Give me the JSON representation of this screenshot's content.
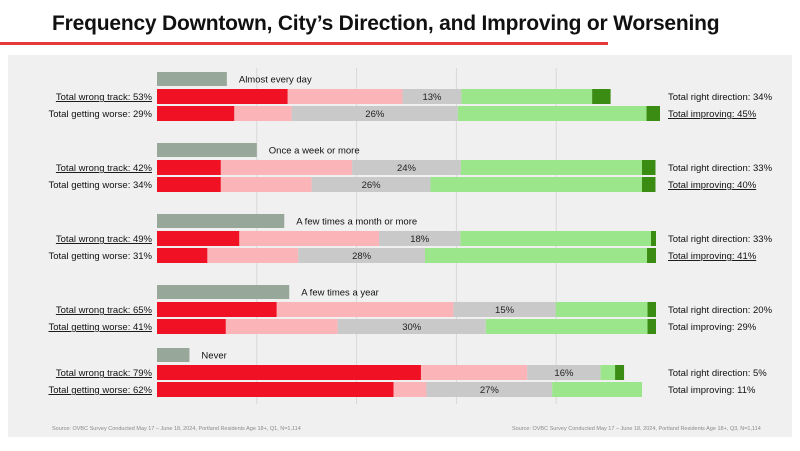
{
  "title": "Frequency Downtown, City’s Direction, and Improving or Worsening",
  "colors": {
    "dark_red": "#f01224",
    "light_red": "#fbb4b8",
    "gray": "#c9c9c9",
    "light_green": "#9be58a",
    "dark_green": "#3b8c12",
    "freq_bar": "#97a89a",
    "accent_rule": "#e63a3a"
  },
  "chart_data": {
    "type": "bar",
    "orientation": "horizontal-stacked",
    "groups": [
      {
        "label": "Almost every day",
        "freq_share": 0.14,
        "direction": {
          "left_label": "Total wrong track: 53%",
          "right_label": "Total right direction: 34%",
          "left_underline": true,
          "right_underline": false,
          "segments": [
            0.262,
            0.23,
            0.118,
            0.262,
            0.037
          ],
          "mid_label": "13%"
        },
        "change": {
          "left_label": "Total getting worse: 29%",
          "right_label": "Total improving: 45%",
          "left_underline": false,
          "right_underline": true,
          "segments": [
            0.155,
            0.115,
            0.333,
            0.378,
            0.027
          ],
          "mid_label": "26%"
        }
      },
      {
        "label": "Once a week or more",
        "freq_share": 0.2,
        "direction": {
          "left_label": "Total wrong track: 42%",
          "right_label": "Total right direction: 33%",
          "left_underline": true,
          "right_underline": false,
          "segments": [
            0.128,
            0.263,
            0.218,
            0.363,
            0.027
          ],
          "mid_label": "24%"
        },
        "change": {
          "left_label": "Total getting worse: 34%",
          "right_label": "Total improving: 40%",
          "left_underline": false,
          "right_underline": true,
          "segments": [
            0.128,
            0.182,
            0.238,
            0.424,
            0.027
          ],
          "mid_label": "26%"
        }
      },
      {
        "label": "A few times a month or more",
        "freq_share": 0.255,
        "direction": {
          "left_label": "Total wrong track: 49%",
          "right_label": "Total right direction: 33%",
          "left_underline": true,
          "right_underline": false,
          "segments": [
            0.165,
            0.28,
            0.163,
            0.382,
            0.01
          ],
          "mid_label": "18%"
        },
        "change": {
          "left_label": "Total getting worse: 31%",
          "right_label": "Total improving: 41%",
          "left_underline": false,
          "right_underline": true,
          "segments": [
            0.101,
            0.182,
            0.254,
            0.445,
            0.018
          ],
          "mid_label": "28%"
        }
      },
      {
        "label": "A few times a year",
        "freq_share": 0.265,
        "direction": {
          "left_label": "Total wrong track: 65%",
          "right_label": "Total right direction: 20%",
          "left_underline": true,
          "right_underline": false,
          "segments": [
            0.24,
            0.354,
            0.205,
            0.184,
            0.017
          ],
          "mid_label": "15%"
        },
        "change": {
          "left_label": "Total getting worse: 41%",
          "right_label": "Total improving: 29%",
          "left_underline": true,
          "right_underline": false,
          "segments": [
            0.138,
            0.224,
            0.297,
            0.324,
            0.017
          ],
          "mid_label": "30%"
        }
      },
      {
        "label": "Never",
        "freq_share": 0.065,
        "direction": {
          "left_label": "Total wrong track: 79%",
          "right_label": "Total right direction: 5%",
          "left_underline": true,
          "right_underline": false,
          "segments": [
            0.529,
            0.213,
            0.147,
            0.029,
            0.018
          ],
          "mid_label": "16%"
        },
        "change": {
          "left_label": "Total getting worse: 62%",
          "right_label": "Total improving: 11%",
          "left_underline": true,
          "right_underline": false,
          "segments": [
            0.474,
            0.066,
            0.252,
            0.18,
            0.0
          ],
          "mid_label": "27%"
        }
      }
    ]
  },
  "footer": {
    "source_left": "Source: OVBC Survey Conducted May 17 – June 18, 2024, Portland Residents Age 18+, Q1, N=1,114",
    "source_right": "Source: OVBC Survey Conducted May 17 – June 18, 2024, Portland Residents Age 18+, Q3, N=1,114"
  }
}
